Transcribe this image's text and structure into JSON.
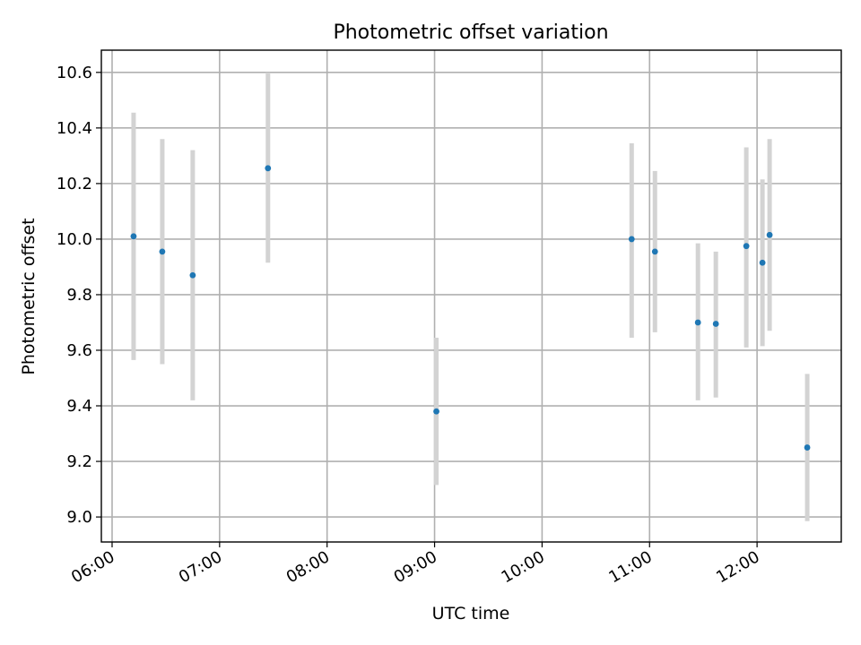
{
  "chart_data": {
    "type": "scatter",
    "title": "Photometric offset variation",
    "xlabel": "UTC time",
    "ylabel": "Photometric offset",
    "x_ticks": [
      "06:00",
      "07:00",
      "08:00",
      "09:00",
      "10:00",
      "11:00",
      "12:00"
    ],
    "y_ticks": [
      "9.0",
      "9.2",
      "9.4",
      "9.6",
      "9.8",
      "10.0",
      "10.2",
      "10.4",
      "10.6"
    ],
    "xlim": [
      "05:54",
      "12:47"
    ],
    "ylim": [
      8.91,
      10.68
    ],
    "grid": true,
    "points": [
      {
        "time": "06:12",
        "y": 10.01,
        "yerr_low": 9.565,
        "yerr_high": 10.455
      },
      {
        "time": "06:28",
        "y": 9.955,
        "yerr_low": 9.55,
        "yerr_high": 10.36
      },
      {
        "time": "06:45",
        "y": 9.87,
        "yerr_low": 9.42,
        "yerr_high": 10.32
      },
      {
        "time": "07:27",
        "y": 10.255,
        "yerr_low": 9.915,
        "yerr_high": 10.6
      },
      {
        "time": "09:01",
        "y": 9.38,
        "yerr_low": 9.115,
        "yerr_high": 9.645
      },
      {
        "time": "10:50",
        "y": 10.0,
        "yerr_low": 9.645,
        "yerr_high": 10.345
      },
      {
        "time": "11:03",
        "y": 9.955,
        "yerr_low": 9.665,
        "yerr_high": 10.245
      },
      {
        "time": "11:27",
        "y": 9.7,
        "yerr_low": 9.42,
        "yerr_high": 9.985
      },
      {
        "time": "11:37",
        "y": 9.695,
        "yerr_low": 9.43,
        "yerr_high": 9.955
      },
      {
        "time": "11:54",
        "y": 9.975,
        "yerr_low": 9.61,
        "yerr_high": 10.33
      },
      {
        "time": "12:03",
        "y": 9.915,
        "yerr_low": 9.615,
        "yerr_high": 10.215
      },
      {
        "time": "12:07",
        "y": 10.015,
        "yerr_low": 9.67,
        "yerr_high": 10.36
      },
      {
        "time": "12:28",
        "y": 9.25,
        "yerr_low": 8.985,
        "yerr_high": 9.515
      }
    ],
    "point_color": "#1f77b4",
    "errorbar_color": "#d3d3d3"
  }
}
